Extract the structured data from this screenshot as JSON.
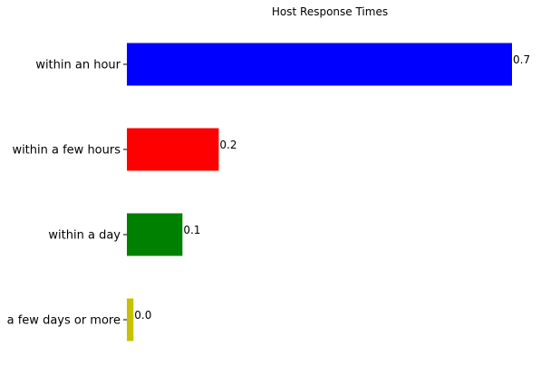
{
  "chart_data": {
    "type": "bar",
    "orientation": "horizontal",
    "title": "Host Response Times",
    "xlabel": "",
    "ylabel": "",
    "categories": [
      "within an hour",
      "within a few hours",
      "within a day",
      "a few days or more"
    ],
    "values": [
      0.7,
      0.2,
      0.1,
      0.0
    ],
    "data_labels": [
      "0.7",
      "0.2",
      "0.1",
      "0.0"
    ],
    "actual_values": [
      0.7,
      0.167,
      0.101,
      0.012
    ],
    "colors": [
      "#0000ff",
      "#ff0000",
      "#008000",
      "#c8c000"
    ],
    "xlim": [
      0,
      0.7
    ],
    "grid": false,
    "legend": "none"
  }
}
